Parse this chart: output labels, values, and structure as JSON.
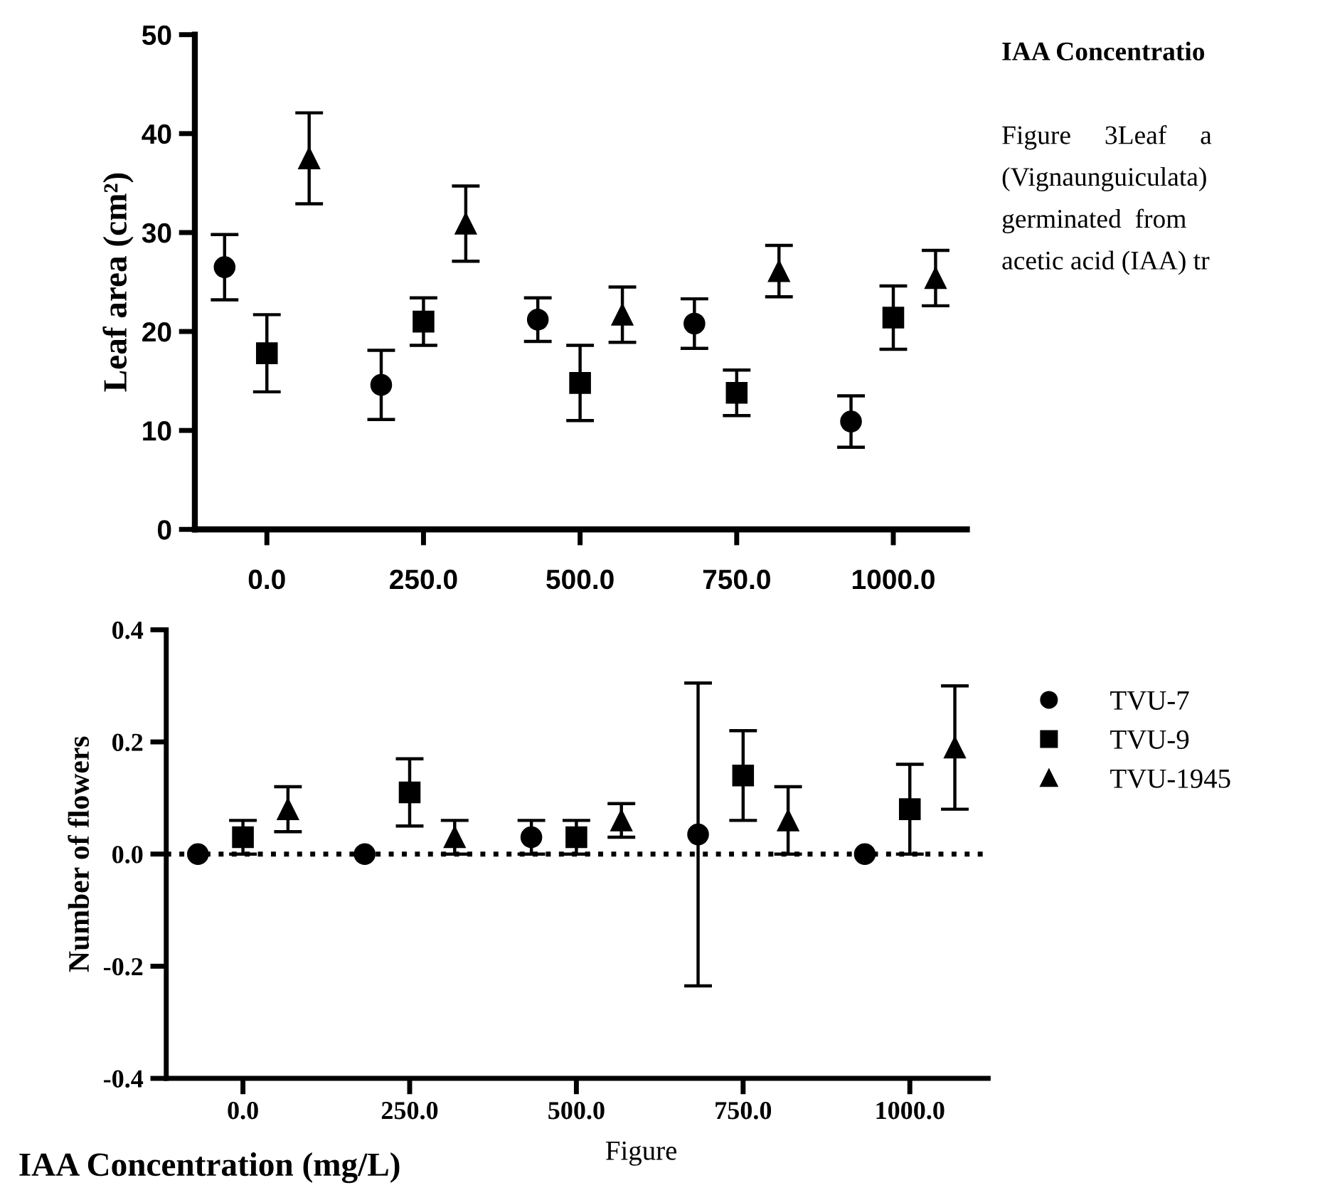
{
  "chart_data": [
    {
      "type": "scatter",
      "ylabel": "Leaf area (cm²)",
      "categories": [
        "0.0",
        "250.0",
        "500.0",
        "750.0",
        "1000.0"
      ],
      "ylim": [
        0,
        50
      ],
      "yticks": [
        0,
        10,
        20,
        30,
        40,
        50
      ],
      "grid": false,
      "legend": false,
      "series": [
        {
          "color": "#000000",
          "marker": "circle",
          "values": [
            26.5,
            14.6,
            21.2,
            20.8,
            10.9
          ],
          "errors": [
            3.3,
            3.5,
            2.2,
            2.5,
            2.6
          ]
        },
        {
          "color": "#000000",
          "marker": "square",
          "values": [
            17.8,
            21.0,
            14.8,
            13.8,
            21.4
          ],
          "errors": [
            3.9,
            2.4,
            3.8,
            2.3,
            3.2
          ]
        },
        {
          "color": "#000000",
          "marker": "triangle",
          "values": [
            37.5,
            30.9,
            21.7,
            26.1,
            25.4
          ],
          "errors": [
            4.6,
            3.8,
            2.8,
            2.6,
            2.8
          ]
        }
      ],
      "annotations": [
        "IAA Concentratio",
        "Figure     3Leaf     a",
        "(Vignaunguiculata)",
        "germinated  from",
        "acetic acid (IAA) tr"
      ]
    },
    {
      "type": "scatter",
      "ylabel": "Number of flowers",
      "xlabel": "IAA Concentration (mg/L)",
      "categories": [
        "0.0",
        "250.0",
        "500.0",
        "750.0",
        "1000.0"
      ],
      "ylim": [
        -0.4,
        0.4
      ],
      "yticks": [
        -0.4,
        -0.2,
        {
          "value": 0,
          "label": "0.0"
        },
        0.2,
        0.4
      ],
      "grid": false,
      "legend": "right",
      "ref_lines": [
        {
          "axis": "y",
          "value": 0.0,
          "line_style": "dotted",
          "color": "#000000"
        }
      ],
      "series": [
        {
          "name": "TVU-7",
          "color": "#000000",
          "marker": "circle",
          "values": [
            0.0,
            0.0,
            0.03,
            0.035,
            0.0
          ],
          "errors": [
            null,
            null,
            0.03,
            0.27,
            null
          ]
        },
        {
          "name": "TVU-9",
          "color": "#000000",
          "marker": "square",
          "values": [
            0.03,
            0.11,
            0.03,
            0.14,
            0.08
          ],
          "errors": [
            0.03,
            0.06,
            0.03,
            0.08,
            0.08
          ]
        },
        {
          "name": "TVU-1945",
          "color": "#000000",
          "marker": "triangle",
          "values": [
            0.08,
            0.03,
            0.06,
            0.06,
            0.19
          ],
          "errors": [
            0.04,
            0.03,
            0.03,
            0.06,
            0.11
          ]
        }
      ],
      "annotations": [
        "Figure"
      ]
    }
  ]
}
